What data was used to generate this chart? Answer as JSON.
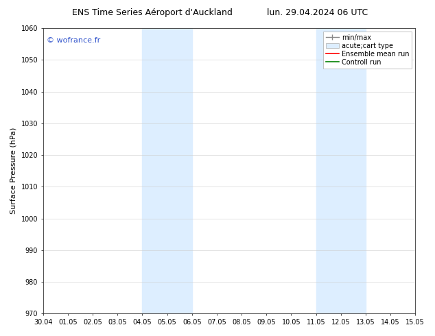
{
  "title_left": "ENS Time Series Aéroport d'Auckland",
  "title_right": "lun. 29.04.2024 06 UTC",
  "ylabel": "Surface Pressure (hPa)",
  "ylim": [
    970,
    1060
  ],
  "yticks": [
    970,
    980,
    990,
    1000,
    1010,
    1020,
    1030,
    1040,
    1050,
    1060
  ],
  "xtick_labels": [
    "30.04",
    "01.05",
    "02.05",
    "03.05",
    "04.05",
    "05.05",
    "06.05",
    "07.05",
    "08.05",
    "09.05",
    "10.05",
    "11.05",
    "12.05",
    "13.05",
    "14.05",
    "15.05"
  ],
  "shaded_regions": [
    {
      "xstart": 4,
      "xend": 6,
      "color": "#ddeeff"
    },
    {
      "xstart": 11,
      "xend": 13,
      "color": "#ddeeff"
    }
  ],
  "watermark": "© wofrance.fr",
  "watermark_color": "#3355cc",
  "legend_labels": [
    "min/max",
    "acute;cart type",
    "Ensemble mean run",
    "Controll run"
  ],
  "background_color": "#ffffff",
  "grid_color": "#cccccc",
  "tick_label_fontsize": 7,
  "axis_label_fontsize": 8,
  "title_fontsize": 9,
  "watermark_fontsize": 8,
  "legend_fontsize": 7
}
